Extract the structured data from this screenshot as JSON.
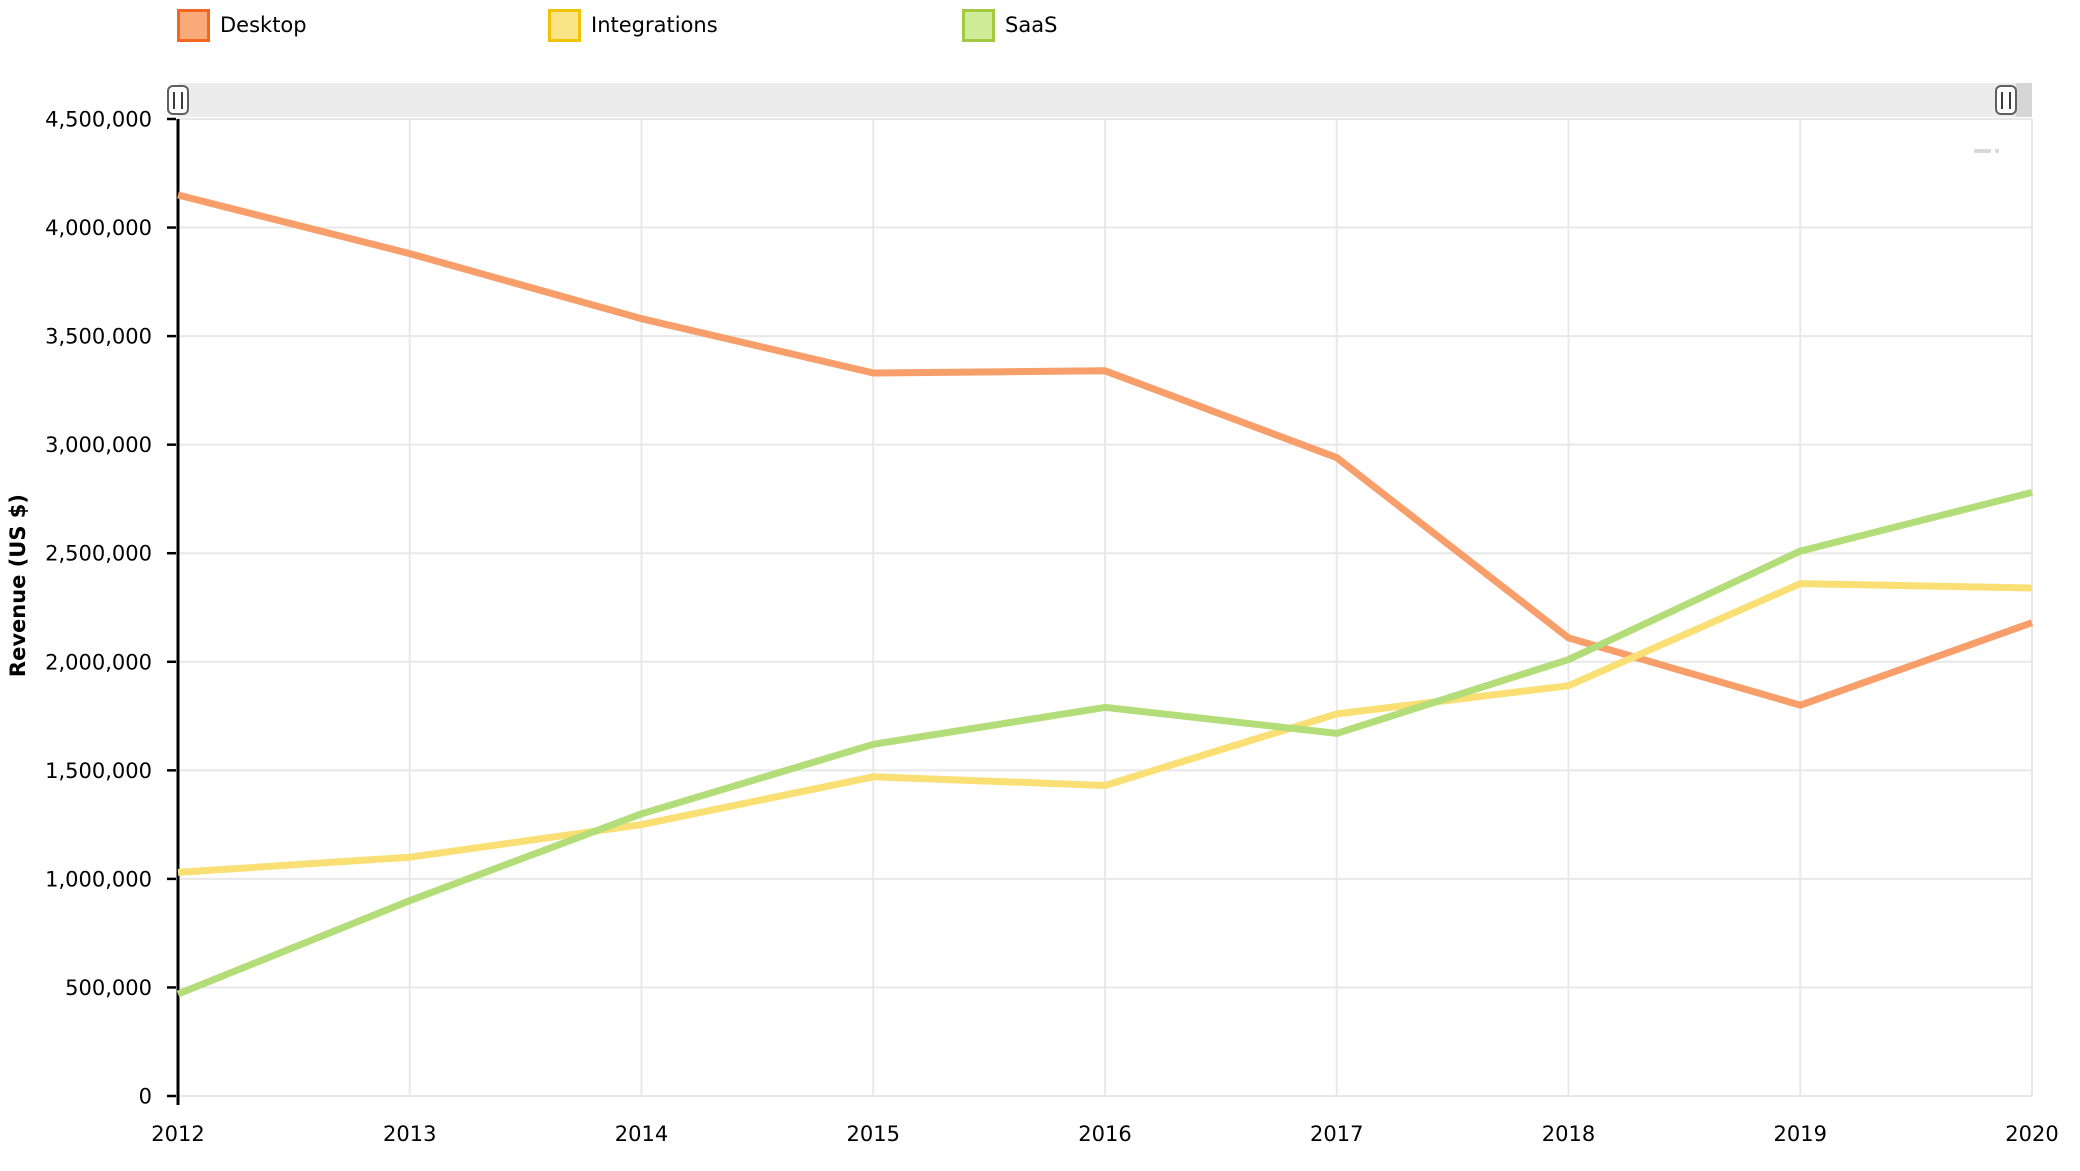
{
  "legend": {
    "items": [
      {
        "label": "Desktop",
        "fill": "#F9AA7B",
        "border": "#F4661F"
      },
      {
        "label": "Integrations",
        "fill": "#FAE488",
        "border": "#F0C301"
      },
      {
        "label": "SaaS",
        "fill": "#D0EB97",
        "border": "#A3C940"
      }
    ]
  },
  "y_axis_title": "Revenue (US $)",
  "chart_data": {
    "type": "line",
    "title": "",
    "xlabel": "",
    "ylabel": "Revenue (US $)",
    "x": [
      2012,
      2013,
      2014,
      2015,
      2016,
      2017,
      2018,
      2019,
      2020
    ],
    "x_tick_labels": [
      "2012",
      "2013",
      "2014",
      "2015",
      "2016",
      "2017",
      "2018",
      "2019",
      "2020"
    ],
    "ylim": [
      0,
      4500000
    ],
    "y_tick_step": 500000,
    "y_tick_labels": [
      "0",
      "500,000",
      "1,000,000",
      "1,500,000",
      "2,000,000",
      "2,500,000",
      "3,000,000",
      "3,500,000",
      "4,000,000",
      "4,500,000"
    ],
    "grid": true,
    "legend_position": "top",
    "series": [
      {
        "name": "Desktop",
        "color": "#F89E6B",
        "values": [
          4150000,
          3880000,
          3580000,
          3330000,
          3340000,
          2940000,
          2110000,
          1800000,
          2180000
        ]
      },
      {
        "name": "Integrations",
        "color": "#FADF75",
        "values": [
          1030000,
          1100000,
          1250000,
          1470000,
          1430000,
          1760000,
          1890000,
          2360000,
          2340000
        ]
      },
      {
        "name": "SaaS",
        "color": "#B2DD78",
        "values": [
          470000,
          900000,
          1300000,
          1620000,
          1790000,
          1670000,
          2010000,
          2510000,
          2780000
        ]
      }
    ]
  },
  "colors": {
    "gridline": "#E8E8E8",
    "axis": "#000000",
    "scrollbar_track": "#ECECEC",
    "scrollbar_track_end": "#D6D6D6"
  }
}
